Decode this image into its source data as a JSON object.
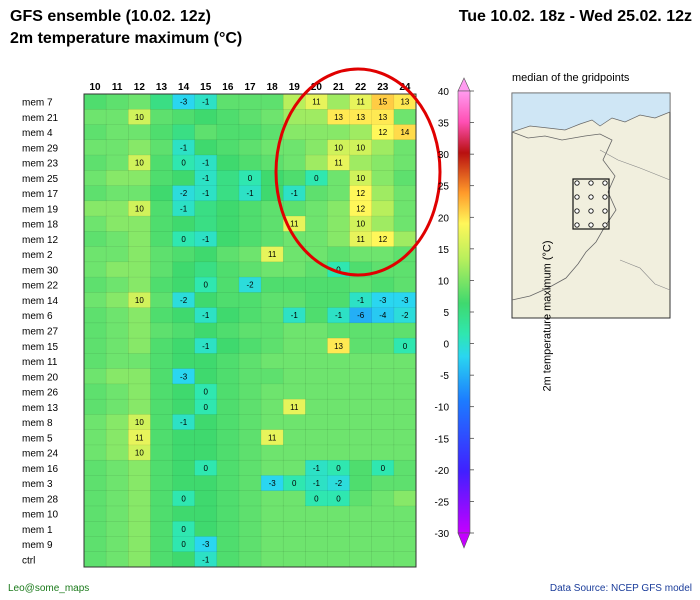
{
  "header": {
    "title_left_1": "GFS ensemble (10.02. 12z)",
    "title_left_2": "2m  temperature maximum (°C)",
    "title_right": "Tue 10.02. 18z - Wed 25.02. 12z"
  },
  "map": {
    "caption": "median of the gridpoints"
  },
  "footer": {
    "left": "Leo@some_maps",
    "right": "Data Source: NCEP GFS model"
  },
  "chart_data": {
    "type": "heatmap",
    "x": [
      "10",
      "11",
      "12",
      "13",
      "14",
      "15",
      "16",
      "17",
      "18",
      "19",
      "20",
      "21",
      "22",
      "23",
      "24"
    ],
    "y": [
      "mem 7",
      "mem 21",
      "mem 4",
      "mem 29",
      "mem 23",
      "mem 25",
      "mem 17",
      "mem 19",
      "mem 18",
      "mem 12",
      "mem 2",
      "mem 30",
      "mem 22",
      "mem 14",
      "mem 6",
      "mem 27",
      "mem 15",
      "mem 11",
      "mem 20",
      "mem 26",
      "mem 13",
      "mem 8",
      "mem 5",
      "mem 24",
      "mem 16",
      "mem 3",
      "mem 28",
      "mem 10",
      "mem 1",
      "mem 9",
      "ctrl"
    ],
    "values": [
      [
        4,
        5,
        6,
        2,
        -3,
        -1,
        5,
        5,
        5,
        9,
        11,
        8,
        11,
        15,
        13
      ],
      [
        6,
        6,
        10,
        5,
        4,
        3,
        4,
        5,
        6,
        8,
        8,
        13,
        13,
        13,
        6
      ],
      [
        5,
        6,
        6,
        4,
        2,
        5,
        4,
        4,
        5,
        7,
        7,
        7,
        8,
        12,
        14
      ],
      [
        6,
        6,
        7,
        5,
        -1,
        3,
        4,
        5,
        6,
        6,
        7,
        10,
        10,
        8,
        6
      ],
      [
        5,
        6,
        10,
        4,
        0,
        -1,
        3,
        4,
        5,
        6,
        8,
        11,
        8,
        7,
        6
      ],
      [
        6,
        7,
        7,
        4,
        3,
        -1,
        2,
        0,
        3,
        4,
        0,
        6,
        10,
        7,
        5
      ],
      [
        5,
        6,
        6,
        3,
        -2,
        -1,
        2,
        -1,
        3,
        -1,
        5,
        6,
        12,
        8,
        6
      ],
      [
        7,
        7,
        10,
        4,
        -1,
        2,
        3,
        4,
        5,
        5,
        6,
        7,
        12,
        9,
        6
      ],
      [
        6,
        7,
        7,
        4,
        3,
        2,
        3,
        4,
        5,
        11,
        6,
        7,
        10,
        8,
        6
      ],
      [
        5,
        6,
        7,
        4,
        0,
        -1,
        3,
        4,
        5,
        6,
        6,
        7,
        11,
        12,
        8
      ],
      [
        6,
        6,
        7,
        5,
        4,
        3,
        5,
        6,
        11,
        6,
        6,
        5,
        6,
        6,
        5
      ],
      [
        6,
        7,
        7,
        5,
        3,
        2,
        4,
        5,
        6,
        6,
        5,
        0,
        4,
        5,
        5
      ],
      [
        5,
        6,
        7,
        4,
        3,
        0,
        4,
        -2,
        4,
        4,
        4,
        4,
        5,
        4,
        5
      ],
      [
        6,
        7,
        10,
        5,
        -2,
        3,
        4,
        4,
        5,
        5,
        4,
        4,
        -1,
        -3,
        -3
      ],
      [
        5,
        6,
        7,
        4,
        3,
        -1,
        3,
        4,
        5,
        -1,
        4,
        -1,
        -6,
        -4,
        -2
      ],
      [
        5,
        6,
        7,
        5,
        4,
        3,
        4,
        5,
        5,
        6,
        6,
        5,
        5,
        5,
        5
      ],
      [
        5,
        6,
        7,
        4,
        3,
        -1,
        3,
        4,
        5,
        6,
        6,
        13,
        5,
        5,
        0
      ],
      [
        5,
        6,
        6,
        4,
        3,
        3,
        4,
        5,
        6,
        6,
        6,
        6,
        6,
        6,
        6
      ],
      [
        6,
        7,
        7,
        4,
        -3,
        3,
        4,
        5,
        5,
        6,
        6,
        6,
        6,
        6,
        6
      ],
      [
        5,
        6,
        7,
        4,
        3,
        0,
        4,
        5,
        6,
        6,
        6,
        6,
        6,
        6,
        6
      ],
      [
        5,
        6,
        7,
        4,
        3,
        0,
        4,
        5,
        6,
        11,
        6,
        6,
        6,
        6,
        6
      ],
      [
        6,
        7,
        10,
        4,
        -1,
        3,
        4,
        5,
        6,
        6,
        6,
        6,
        6,
        6,
        6
      ],
      [
        6,
        7,
        11,
        4,
        3,
        3,
        4,
        5,
        11,
        6,
        6,
        6,
        6,
        6,
        6
      ],
      [
        6,
        7,
        10,
        4,
        3,
        3,
        4,
        5,
        6,
        6,
        6,
        6,
        6,
        6,
        6
      ],
      [
        5,
        6,
        7,
        4,
        3,
        0,
        4,
        5,
        6,
        6,
        -1,
        0,
        4,
        0,
        5
      ],
      [
        5,
        6,
        7,
        4,
        3,
        3,
        4,
        5,
        -3,
        0,
        -1,
        -2,
        4,
        5,
        5
      ],
      [
        5,
        6,
        7,
        4,
        0,
        3,
        4,
        5,
        6,
        6,
        0,
        0,
        5,
        6,
        7
      ],
      [
        5,
        6,
        7,
        4,
        3,
        3,
        4,
        5,
        6,
        6,
        6,
        6,
        6,
        6,
        6
      ],
      [
        5,
        6,
        7,
        4,
        0,
        3,
        4,
        5,
        6,
        6,
        6,
        6,
        6,
        6,
        6
      ],
      [
        5,
        6,
        7,
        4,
        0,
        -3,
        4,
        5,
        6,
        6,
        6,
        6,
        6,
        6,
        6
      ],
      [
        5,
        6,
        7,
        4,
        3,
        -1,
        4,
        5,
        6,
        6,
        6,
        6,
        6,
        6,
        6
      ]
    ],
    "labeled_cells": [
      [
        0,
        4
      ],
      [
        0,
        5
      ],
      [
        0,
        10
      ],
      [
        0,
        12
      ],
      [
        0,
        13
      ],
      [
        0,
        14
      ],
      [
        1,
        2
      ],
      [
        1,
        11
      ],
      [
        1,
        12
      ],
      [
        1,
        13
      ],
      [
        2,
        13
      ],
      [
        2,
        14
      ],
      [
        3,
        4
      ],
      [
        3,
        11
      ],
      [
        3,
        12
      ],
      [
        4,
        2
      ],
      [
        4,
        4
      ],
      [
        4,
        5
      ],
      [
        4,
        11
      ],
      [
        5,
        5
      ],
      [
        5,
        7
      ],
      [
        5,
        10
      ],
      [
        5,
        12
      ],
      [
        6,
        4
      ],
      [
        6,
        5
      ],
      [
        6,
        7
      ],
      [
        6,
        9
      ],
      [
        6,
        12
      ],
      [
        7,
        2
      ],
      [
        7,
        4
      ],
      [
        7,
        12
      ],
      [
        8,
        9
      ],
      [
        8,
        12
      ],
      [
        9,
        4
      ],
      [
        9,
        5
      ],
      [
        9,
        12
      ],
      [
        9,
        13
      ],
      [
        10,
        8
      ],
      [
        11,
        11
      ],
      [
        12,
        5
      ],
      [
        12,
        7
      ],
      [
        13,
        2
      ],
      [
        13,
        4
      ],
      [
        13,
        12
      ],
      [
        13,
        13
      ],
      [
        13,
        14
      ],
      [
        14,
        5
      ],
      [
        14,
        9
      ],
      [
        14,
        11
      ],
      [
        14,
        12
      ],
      [
        14,
        13
      ],
      [
        14,
        14
      ],
      [
        16,
        5
      ],
      [
        16,
        11
      ],
      [
        16,
        14
      ],
      [
        18,
        4
      ],
      [
        19,
        5
      ],
      [
        20,
        5
      ],
      [
        20,
        9
      ],
      [
        21,
        2
      ],
      [
        21,
        4
      ],
      [
        22,
        2
      ],
      [
        22,
        8
      ],
      [
        23,
        2
      ],
      [
        24,
        5
      ],
      [
        24,
        10
      ],
      [
        24,
        11
      ],
      [
        24,
        13
      ],
      [
        25,
        8
      ],
      [
        25,
        9
      ],
      [
        25,
        10
      ],
      [
        25,
        11
      ],
      [
        26,
        4
      ],
      [
        26,
        10
      ],
      [
        26,
        11
      ],
      [
        28,
        4
      ],
      [
        29,
        4
      ],
      [
        29,
        5
      ],
      [
        30,
        5
      ]
    ],
    "colorbar": {
      "label": "2m  temperature maximum (°C)",
      "ticks": [
        40,
        35,
        30,
        25,
        20,
        15,
        10,
        5,
        0,
        -5,
        -10,
        -15,
        -20,
        -25,
        -30
      ],
      "range": [
        -30,
        40
      ]
    },
    "annotation": "red ellipse highlighting days 19-24 for upper members"
  }
}
